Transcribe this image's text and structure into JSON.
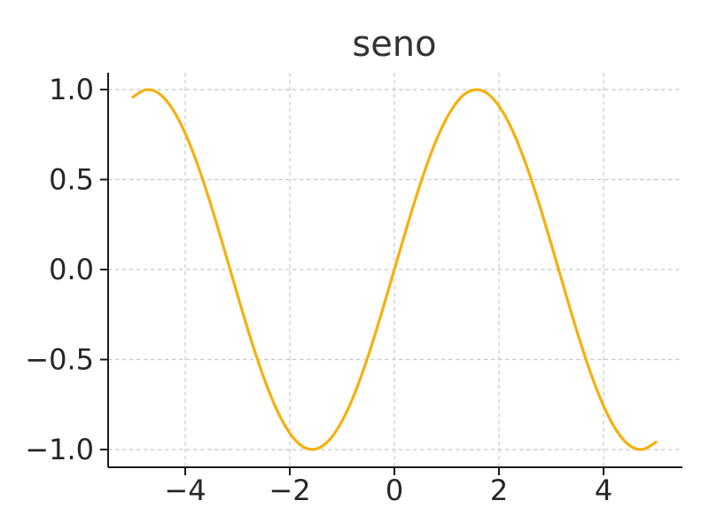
{
  "chart_data": {
    "type": "line",
    "title": "seno",
    "xlabel": "",
    "ylabel": "",
    "xlim": [
      -5.5,
      5.5
    ],
    "ylim": [
      -1.1,
      1.1
    ],
    "grid": true,
    "x_ticks": [
      -4,
      -2,
      0,
      2,
      4
    ],
    "x_tick_labels": [
      "−4",
      "−2",
      "0",
      "2",
      "4"
    ],
    "y_ticks": [
      -1.0,
      -0.5,
      0.0,
      0.5,
      1.0
    ],
    "y_tick_labels": [
      "−1.0",
      "−0.5",
      "0.0",
      "0.5",
      "1.0"
    ],
    "series": [
      {
        "color": "#f5b00e",
        "x": [
          -5.0,
          -4.75,
          -4.5,
          -4.25,
          -4.0,
          -3.75,
          -3.5,
          -3.25,
          -3.0,
          -2.75,
          -2.5,
          -2.25,
          -2.0,
          -1.75,
          -1.5,
          -1.25,
          -1.0,
          -0.75,
          -0.5,
          -0.25,
          0.0,
          0.25,
          0.5,
          0.75,
          1.0,
          1.25,
          1.5,
          1.75,
          2.0,
          2.25,
          2.5,
          2.75,
          3.0,
          3.25,
          3.5,
          3.75,
          4.0,
          4.25,
          4.5,
          4.75,
          5.0
        ],
        "y": [
          0.959,
          0.999,
          0.978,
          0.895,
          0.757,
          0.572,
          0.351,
          0.108,
          -0.141,
          -0.382,
          -0.598,
          -0.778,
          -0.909,
          -0.984,
          -0.997,
          -0.949,
          -0.841,
          -0.682,
          -0.479,
          -0.247,
          0.0,
          0.247,
          0.479,
          0.682,
          0.841,
          0.949,
          0.997,
          0.984,
          0.909,
          0.778,
          0.598,
          0.382,
          0.141,
          -0.108,
          -0.351,
          -0.572,
          -0.757,
          -0.895,
          -0.978,
          -0.999,
          -0.959
        ]
      }
    ]
  }
}
